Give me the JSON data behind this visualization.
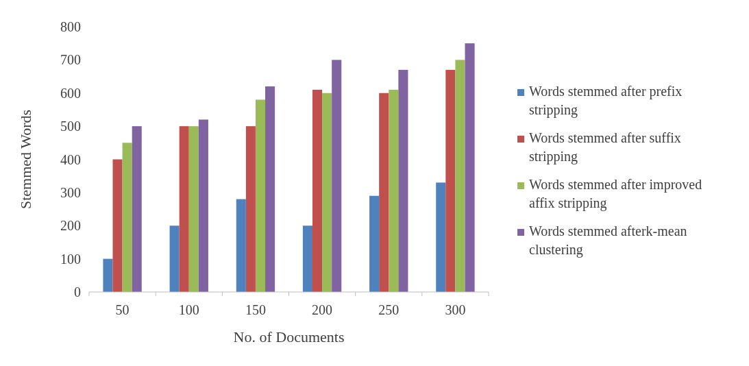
{
  "chart_data": {
    "type": "bar",
    "xlabel": "No. of Documents",
    "ylabel": "Stemmed Words",
    "categories": [
      "50",
      "100",
      "150",
      "200",
      "250",
      "300"
    ],
    "series": [
      {
        "name": "Words stemmed after prefix stripping",
        "color": "#4f81bd",
        "values": [
          100,
          200,
          280,
          200,
          290,
          330
        ]
      },
      {
        "name": "Words stemmed after suffix stripping",
        "color": "#c0504d",
        "values": [
          400,
          500,
          500,
          610,
          600,
          670
        ]
      },
      {
        "name": "Words stemmed after improved affix stripping",
        "color": "#9bbb59",
        "values": [
          450,
          500,
          580,
          600,
          610,
          700
        ]
      },
      {
        "name": "Words stemmed afterk-mean clustering",
        "color": "#8064a2",
        "values": [
          500,
          520,
          620,
          700,
          670,
          750
        ]
      }
    ],
    "ylim": [
      0,
      800
    ],
    "yticks": [
      0,
      100,
      200,
      300,
      400,
      500,
      600,
      700,
      800
    ],
    "grid": false,
    "legend": "right"
  }
}
